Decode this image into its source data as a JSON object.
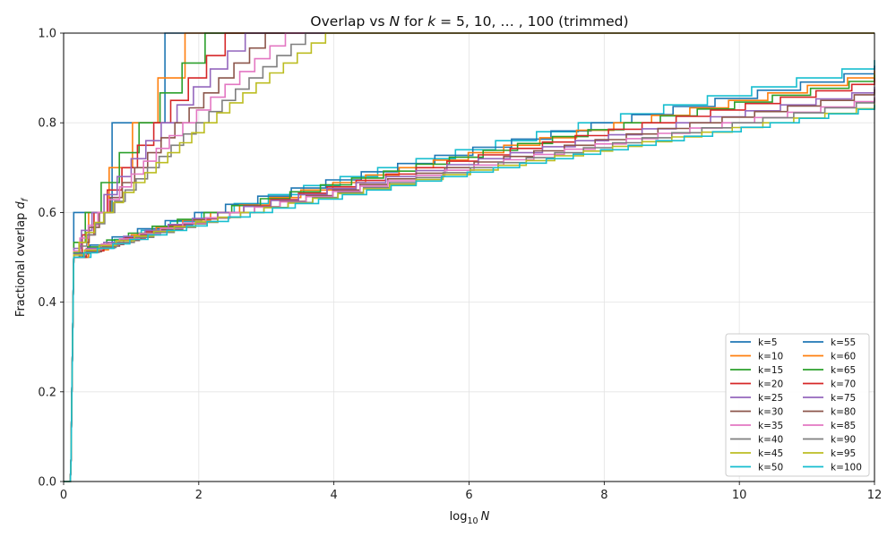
{
  "chart_data": {
    "type": "line",
    "title": "Overlap vs N for k = 5, 10, ..., 100 (trimmed)",
    "title_parts": {
      "lead": "Overlap vs ",
      "var_n": "N",
      "mid": " for ",
      "var_k": "k",
      "eq": " = 5, 10, … , 100",
      "tail": " (trimmed)"
    },
    "xlabel": "log10 N",
    "xlabel_parts": {
      "log": "log",
      "sub": "10",
      "var": "N"
    },
    "ylabel": "Fractional overlap d_f",
    "ylabel_parts": {
      "text": "Fractional overlap ",
      "var": "d",
      "sub": "f"
    },
    "xlim": [
      0,
      12
    ],
    "ylim": [
      0,
      1
    ],
    "xticks": [
      "0",
      "2",
      "4",
      "6",
      "8",
      "10",
      "12"
    ],
    "yticks": [
      "0.0",
      "0.2",
      "0.4",
      "0.6",
      "0.8",
      "1.0"
    ],
    "grid": true,
    "legend_position": "bottom-right",
    "legend_columns": 2,
    "series": [
      {
        "name": "k=5",
        "k": 5,
        "color": "#1f77b4",
        "final": 1.0
      },
      {
        "name": "k=10",
        "k": 10,
        "color": "#ff7f0e",
        "final": 1.0
      },
      {
        "name": "k=15",
        "k": 15,
        "color": "#2ca02c",
        "final": 1.0
      },
      {
        "name": "k=20",
        "k": 20,
        "color": "#d62728",
        "final": 1.0
      },
      {
        "name": "k=25",
        "k": 25,
        "color": "#9467bd",
        "final": 1.0
      },
      {
        "name": "k=30",
        "k": 30,
        "color": "#8c564b",
        "final": 1.0
      },
      {
        "name": "k=35",
        "k": 35,
        "color": "#e377c2",
        "final": 1.0
      },
      {
        "name": "k=40",
        "k": 40,
        "color": "#7f7f7f",
        "final": 1.0
      },
      {
        "name": "k=45",
        "k": 45,
        "color": "#bcbd22",
        "final": 1.0
      },
      {
        "name": "k=50",
        "k": 50,
        "color": "#17becf",
        "final": 0.94
      },
      {
        "name": "k=55",
        "k": 55,
        "color": "#1f77b4",
        "final": 0.93
      },
      {
        "name": "k=60",
        "k": 60,
        "color": "#ff7f0e",
        "final": 0.917
      },
      {
        "name": "k=65",
        "k": 65,
        "color": "#2ca02c",
        "final": 0.908
      },
      {
        "name": "k=70",
        "k": 70,
        "color": "#d62728",
        "final": 0.9
      },
      {
        "name": "k=75",
        "k": 75,
        "color": "#9467bd",
        "final": 0.88
      },
      {
        "name": "k=80",
        "k": 80,
        "color": "#8c564b",
        "final": 0.875
      },
      {
        "name": "k=85",
        "k": 85,
        "color": "#e377c2",
        "final": 0.859
      },
      {
        "name": "k=90",
        "k": 90,
        "color": "#7f7f7f",
        "final": 0.856
      },
      {
        "name": "k=95",
        "k": 95,
        "color": "#bcbd22",
        "final": 0.842
      },
      {
        "name": "k=100",
        "k": 100,
        "color": "#17becf",
        "final": 0.84
      }
    ]
  }
}
